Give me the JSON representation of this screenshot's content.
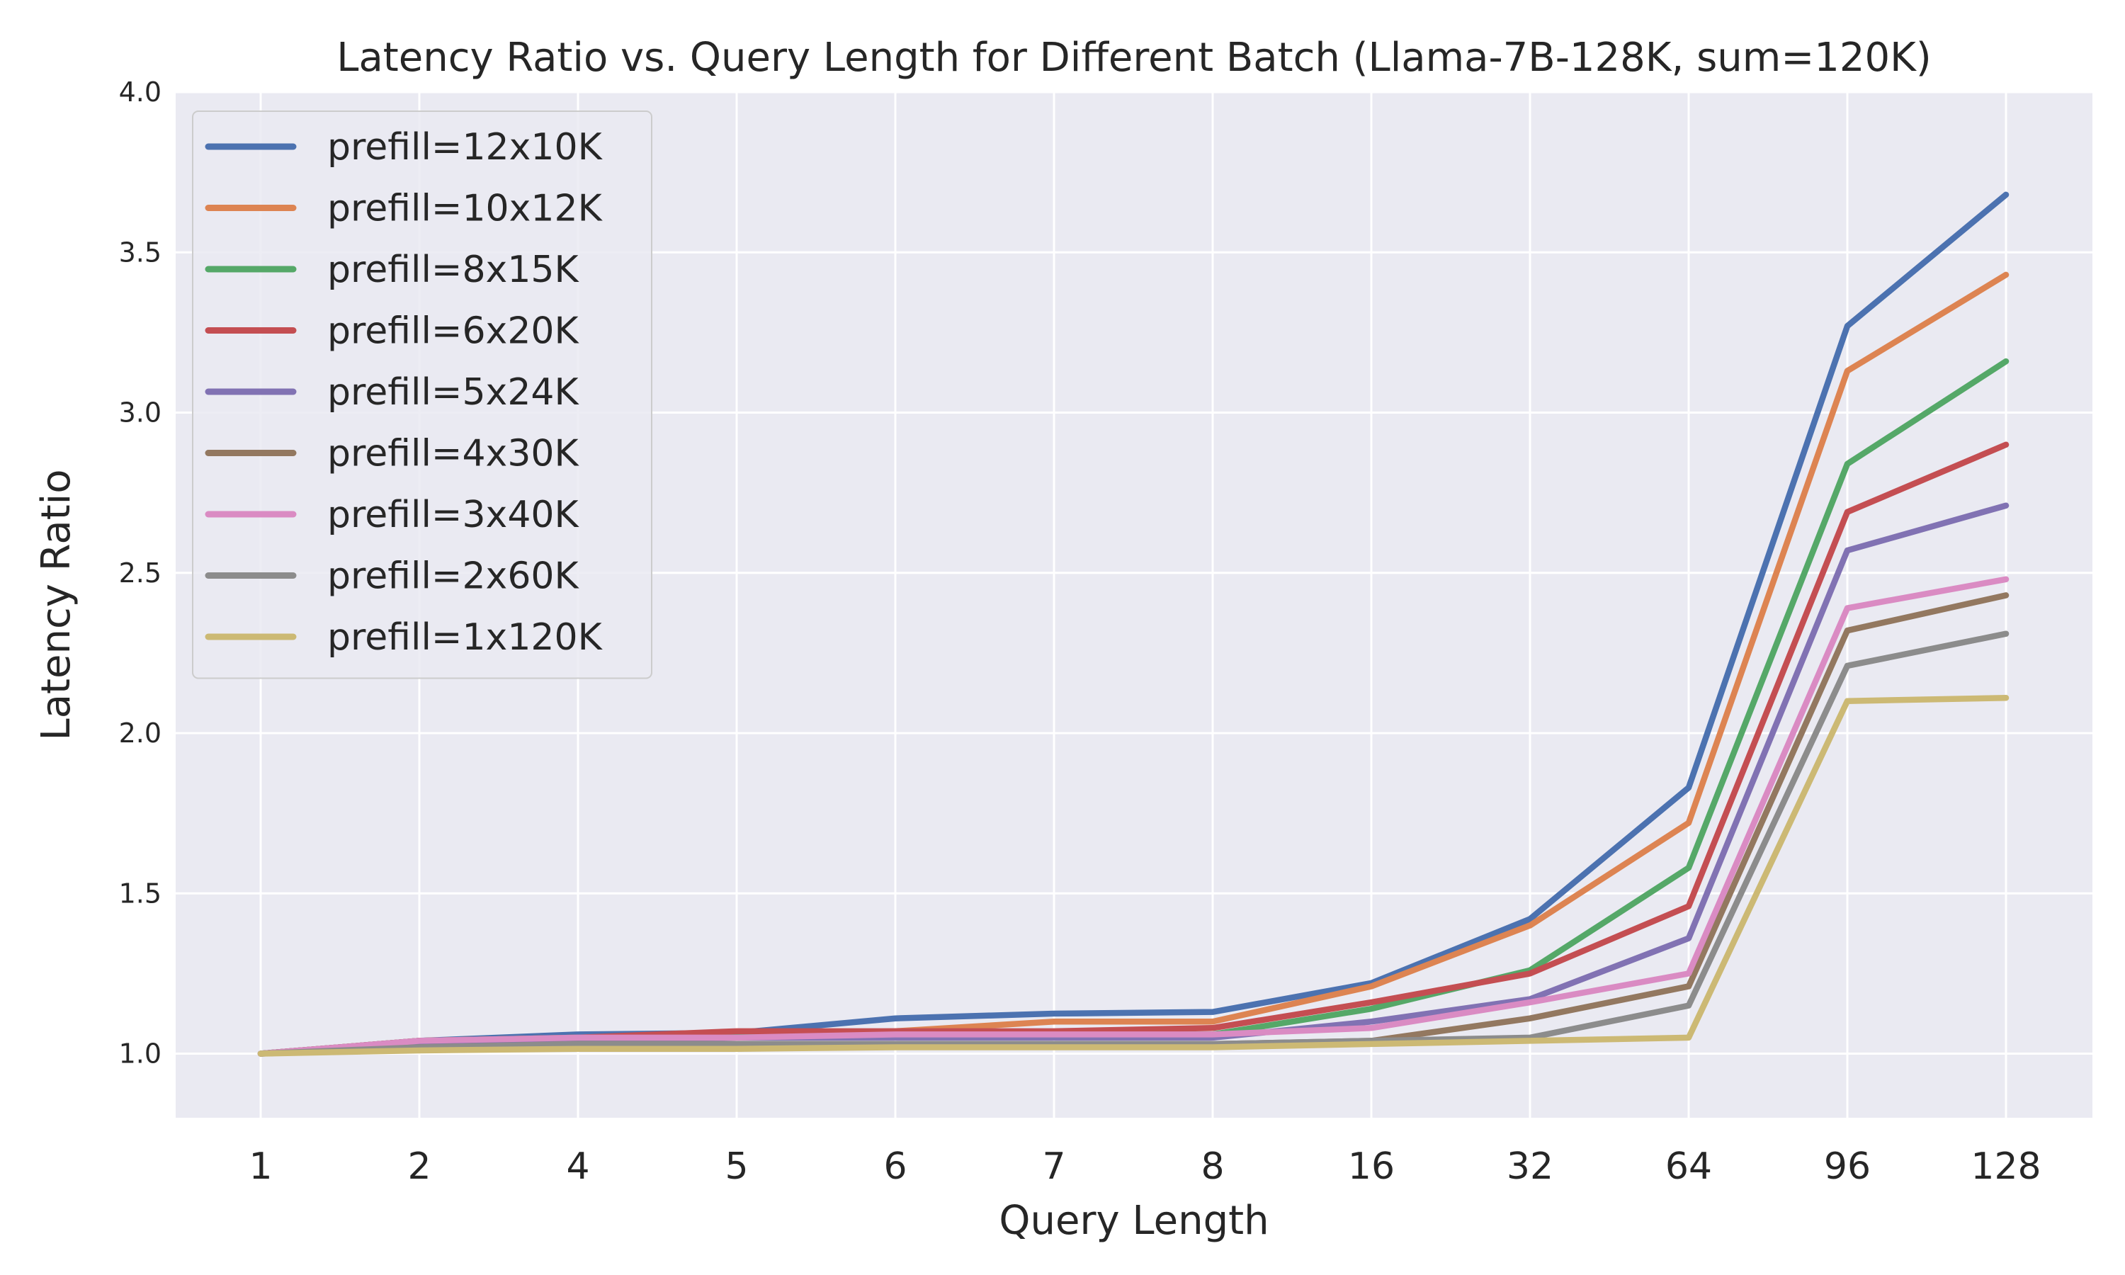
{
  "chart_data": {
    "type": "line",
    "title": "Latency Ratio vs. Query Length for Different Batch (Llama-7B-128K, sum=120K)",
    "xlabel": "Query Length",
    "ylabel": "Latency Ratio",
    "categories": [
      "1",
      "2",
      "4",
      "5",
      "6",
      "7",
      "8",
      "16",
      "32",
      "64",
      "96",
      "128"
    ],
    "yticks": [
      "1.0",
      "1.5",
      "2.0",
      "2.5",
      "3.0",
      "3.5",
      "4.0"
    ],
    "ylim": [
      0.8,
      4.0
    ],
    "grid": true,
    "legend_position": "top-left",
    "background": "#eaeaf2",
    "series": [
      {
        "name": "prefill=12x10K",
        "color": "#4c72b0",
        "values": [
          1.0,
          1.04,
          1.06,
          1.065,
          1.11,
          1.125,
          1.13,
          1.22,
          1.42,
          1.83,
          3.27,
          3.68
        ]
      },
      {
        "name": "prefill=10x12K",
        "color": "#dd8452",
        "values": [
          1.0,
          1.04,
          1.05,
          1.06,
          1.07,
          1.1,
          1.1,
          1.21,
          1.4,
          1.72,
          3.13,
          3.43
        ]
      },
      {
        "name": "prefill=8x15K",
        "color": "#55a868",
        "values": [
          1.0,
          1.04,
          1.05,
          1.055,
          1.055,
          1.06,
          1.06,
          1.14,
          1.26,
          1.58,
          2.84,
          3.16
        ]
      },
      {
        "name": "prefill=6x20K",
        "color": "#c44e52",
        "values": [
          1.0,
          1.04,
          1.05,
          1.07,
          1.07,
          1.07,
          1.08,
          1.16,
          1.25,
          1.46,
          2.69,
          2.9
        ]
      },
      {
        "name": "prefill=5x24K",
        "color": "#8172b3",
        "values": [
          1.0,
          1.03,
          1.04,
          1.05,
          1.05,
          1.05,
          1.05,
          1.1,
          1.17,
          1.36,
          2.57,
          2.71
        ]
      },
      {
        "name": "prefill=4x30K",
        "color": "#937860",
        "values": [
          1.0,
          1.02,
          1.03,
          1.03,
          1.03,
          1.03,
          1.03,
          1.04,
          1.11,
          1.21,
          2.32,
          2.43
        ]
      },
      {
        "name": "prefill=3x40K",
        "color": "#da8bc3",
        "values": [
          1.0,
          1.04,
          1.05,
          1.05,
          1.06,
          1.06,
          1.06,
          1.08,
          1.16,
          1.25,
          2.39,
          2.48
        ]
      },
      {
        "name": "prefill=2x60K",
        "color": "#8c8c8c",
        "values": [
          1.0,
          1.02,
          1.03,
          1.03,
          1.03,
          1.03,
          1.03,
          1.04,
          1.05,
          1.15,
          2.21,
          2.31
        ]
      },
      {
        "name": "prefill=1x120K",
        "color": "#ccb974",
        "values": [
          1.0,
          1.01,
          1.015,
          1.015,
          1.02,
          1.02,
          1.02,
          1.03,
          1.04,
          1.05,
          2.1,
          2.11
        ]
      }
    ]
  }
}
